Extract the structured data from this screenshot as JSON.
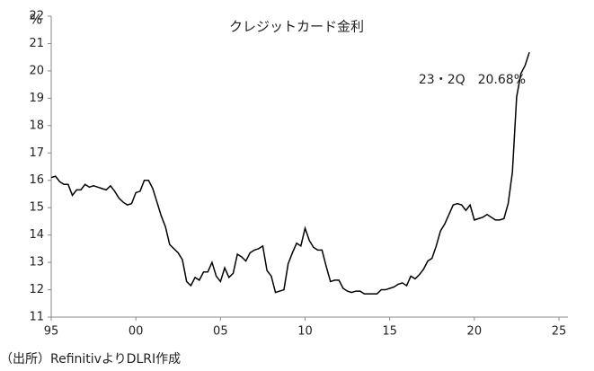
{
  "chart_data": {
    "type": "line",
    "title": "クレジットカード金利",
    "y_unit": "%",
    "annotation": "23・2Q　20.68%",
    "source": "（出所）RefinitivよりDLRI作成",
    "x": [
      1995,
      1995.25,
      1995.5,
      1995.75,
      1996,
      1996.25,
      1996.5,
      1996.75,
      1997,
      1997.25,
      1997.5,
      1997.75,
      1998,
      1998.25,
      1998.5,
      1998.75,
      1999,
      1999.25,
      1999.5,
      1999.75,
      2000,
      2000.25,
      2000.5,
      2000.75,
      2001,
      2001.25,
      2001.5,
      2001.75,
      2002,
      2002.25,
      2002.5,
      2002.75,
      2003,
      2003.25,
      2003.5,
      2003.75,
      2004,
      2004.25,
      2004.5,
      2004.75,
      2005,
      2005.25,
      2005.5,
      2005.75,
      2006,
      2006.25,
      2006.5,
      2006.75,
      2007,
      2007.25,
      2007.5,
      2007.75,
      2008,
      2008.25,
      2008.5,
      2008.75,
      2009,
      2009.25,
      2009.5,
      2009.75,
      2010,
      2010.25,
      2010.5,
      2010.75,
      2011,
      2011.25,
      2011.5,
      2011.75,
      2012,
      2012.25,
      2012.5,
      2012.75,
      2013,
      2013.25,
      2013.5,
      2013.75,
      2014,
      2014.25,
      2014.5,
      2014.75,
      2015,
      2015.25,
      2015.5,
      2015.75,
      2016,
      2016.25,
      2016.5,
      2016.75,
      2017,
      2017.25,
      2017.5,
      2017.75,
      2018,
      2018.25,
      2018.5,
      2018.75,
      2019,
      2019.25,
      2019.5,
      2019.75,
      2020,
      2020.25,
      2020.5,
      2020.75,
      2021,
      2021.25,
      2021.5,
      2021.75,
      2022,
      2022.25,
      2022.5,
      2022.75,
      2023,
      2023.25
    ],
    "series": [
      {
        "color": "#000000",
        "values": [
          16.1,
          16.15,
          15.95,
          15.85,
          15.85,
          15.45,
          15.65,
          15.65,
          15.85,
          15.75,
          15.8,
          15.75,
          15.7,
          15.65,
          15.8,
          15.6,
          15.35,
          15.2,
          15.1,
          15.15,
          15.55,
          15.6,
          16.0,
          16.0,
          15.7,
          15.2,
          14.7,
          14.3,
          13.65,
          13.5,
          13.35,
          13.1,
          12.3,
          12.15,
          12.45,
          12.35,
          12.65,
          12.65,
          13.0,
          12.5,
          12.3,
          12.8,
          12.45,
          12.6,
          13.3,
          13.2,
          13.05,
          13.35,
          13.45,
          13.5,
          13.6,
          12.7,
          12.5,
          11.9,
          11.95,
          12.0,
          12.95,
          13.35,
          13.7,
          13.6,
          14.25,
          13.8,
          13.55,
          13.45,
          13.45,
          12.85,
          12.3,
          12.35,
          12.35,
          12.05,
          11.95,
          11.9,
          11.95,
          11.95,
          11.85,
          11.85,
          11.85,
          11.85,
          12.0,
          12.0,
          12.05,
          12.1,
          12.2,
          12.25,
          12.15,
          12.5,
          12.4,
          12.55,
          12.75,
          13.05,
          13.15,
          13.6,
          14.15,
          14.4,
          14.75,
          15.1,
          15.15,
          15.1,
          14.9,
          15.1,
          14.55,
          14.6,
          14.65,
          14.75,
          14.65,
          14.55,
          14.55,
          14.6,
          15.15,
          16.3,
          19.05,
          19.9,
          20.2,
          20.68
        ]
      }
    ],
    "xlim": [
      1995,
      2025
    ],
    "ylim": [
      11,
      22
    ],
    "xticks": [
      {
        "value": 1995,
        "label": "95"
      },
      {
        "value": 2000,
        "label": "00"
      },
      {
        "value": 2005,
        "label": "05"
      },
      {
        "value": 2010,
        "label": "10"
      },
      {
        "value": 2015,
        "label": "15"
      },
      {
        "value": 2020,
        "label": "20"
      },
      {
        "value": 2025,
        "label": "25"
      }
    ],
    "yticks": [
      11,
      12,
      13,
      14,
      15,
      16,
      17,
      18,
      19,
      20,
      21,
      22
    ]
  }
}
